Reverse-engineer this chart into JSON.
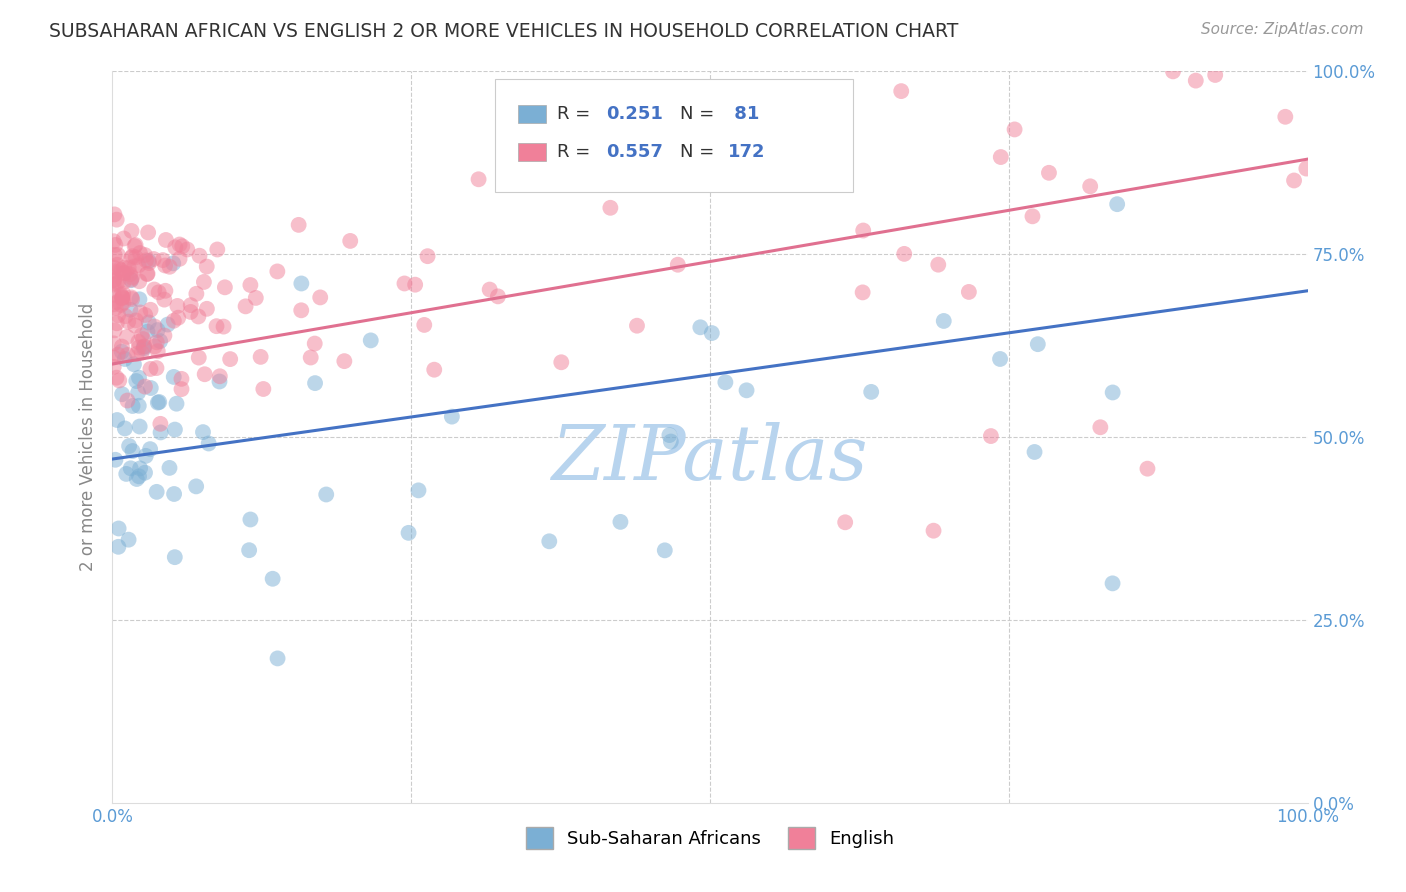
{
  "title": "SUBSAHARAN AFRICAN VS ENGLISH 2 OR MORE VEHICLES IN HOUSEHOLD CORRELATION CHART",
  "source": "Source: ZipAtlas.com",
  "ylabel_label": "2 or more Vehicles in Household",
  "blue_line_color": "#4472c4",
  "pink_line_color": "#e07090",
  "blue_line_start": 0.47,
  "blue_line_end": 0.7,
  "pink_line_start": 0.6,
  "pink_line_end": 0.88,
  "watermark_text": "ZIPatlas",
  "watermark_color": "#b8d4ee",
  "background_color": "#ffffff",
  "grid_color": "#cccccc",
  "title_color": "#333333",
  "axis_label_color": "#888888",
  "tick_label_color": "#5b9bd5",
  "blue_scatter_color": "#7bafd4",
  "pink_scatter_color": "#f08099",
  "blue_R": 0.251,
  "blue_N": 81,
  "pink_R": 0.557,
  "pink_N": 172,
  "xlim": [
    0,
    1
  ],
  "ylim": [
    0,
    1
  ],
  "figsize": [
    14.06,
    8.92
  ],
  "dpi": 100,
  "legend_text_color": "#4472c4",
  "legend_label_color": "#333333"
}
